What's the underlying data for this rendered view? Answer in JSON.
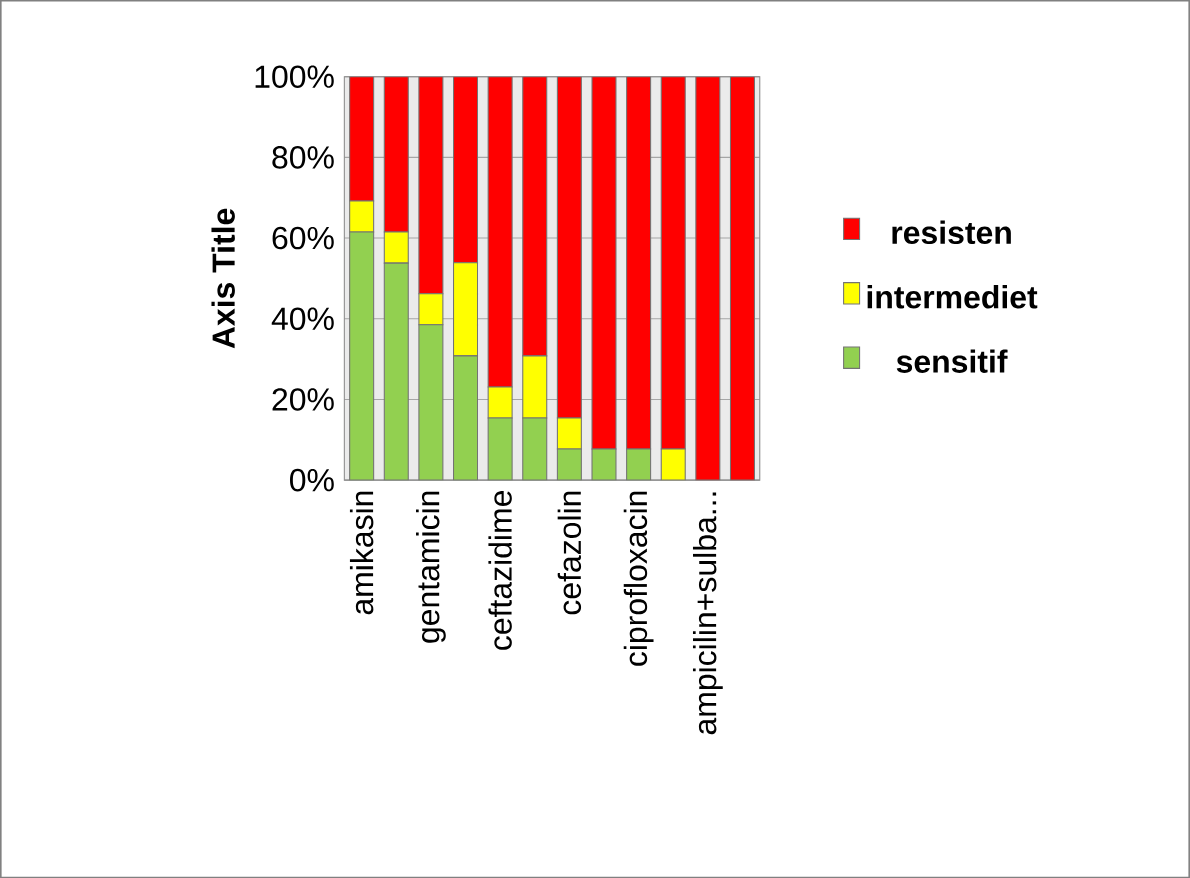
{
  "chart_data": {
    "type": "bar",
    "ylabel": "Axis Title",
    "categories": [
      "amikasin",
      null,
      "gentamicin",
      null,
      "ceftazidime",
      null,
      "cefazolin",
      null,
      "ciprofloxacin",
      null,
      "ampicilin+sulba...",
      null
    ],
    "series": [
      {
        "name": "sensitif",
        "color": "#92d050",
        "values": [
          61.5,
          53.8,
          38.5,
          30.8,
          15.4,
          15.4,
          7.7,
          7.7,
          7.7,
          0,
          0,
          0
        ]
      },
      {
        "name": "intermediet",
        "color": "#ffff00",
        "values": [
          7.7,
          7.7,
          7.7,
          23.1,
          7.7,
          15.4,
          7.7,
          0,
          0,
          7.7,
          0,
          0
        ]
      },
      {
        "name": "resisten",
        "color": "#ff0000",
        "values": [
          30.8,
          38.5,
          53.8,
          46.1,
          76.9,
          69.2,
          84.6,
          92.3,
          92.3,
          92.3,
          100,
          100
        ]
      }
    ],
    "stacked": true,
    "ylim": [
      0,
      100
    ],
    "yticks": [
      {
        "value": 0,
        "label": "0%"
      },
      {
        "value": 20,
        "label": "20%"
      },
      {
        "value": 40,
        "label": "40%"
      },
      {
        "value": 60,
        "label": "60%"
      },
      {
        "value": 80,
        "label": "80%"
      },
      {
        "value": 100,
        "label": "100%"
      }
    ],
    "grid": "y",
    "legend": "right"
  }
}
